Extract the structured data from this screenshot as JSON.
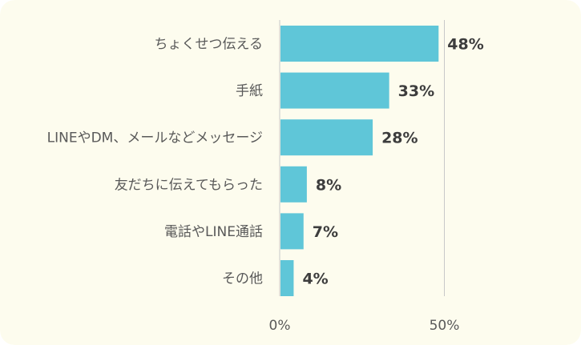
{
  "colors": {
    "background": "#fdfcee",
    "bar": "#5fc6d8",
    "axis": "#c8c8c8",
    "category_text": "#595959",
    "value_text": "#3d3d3d"
  },
  "chart_data": {
    "type": "bar",
    "orientation": "horizontal",
    "categories": [
      "ちょくせつ伝える",
      "手紙",
      "LINEやDM、メールなどメッセージ",
      "友だちに伝えてもらった",
      "電話やLINE通話",
      "その他"
    ],
    "values": [
      48,
      33,
      28,
      8,
      7,
      4
    ],
    "value_labels": [
      "48%",
      "33%",
      "28%",
      "8%",
      "7%",
      "4%"
    ],
    "xlim": [
      0,
      50
    ],
    "x_ticks": [
      0,
      50
    ],
    "x_tick_labels": [
      "0%",
      "50%"
    ],
    "gridlines": true,
    "legend": "none"
  }
}
